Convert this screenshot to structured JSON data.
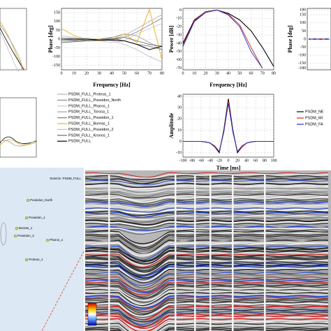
{
  "chart_data": [
    {
      "type": "line",
      "ylabel": "Phase [deg]",
      "xlabel": "Frequency [Hz]",
      "xlim": [
        0,
        80
      ],
      "xticks": [
        0,
        10,
        20,
        30,
        40,
        50,
        60,
        70,
        80
      ],
      "ylim": [
        -175,
        175
      ],
      "yticks": [
        150,
        100,
        50,
        0,
        -50,
        -100,
        -150
      ],
      "grid": true,
      "x": [
        0,
        10,
        20,
        30,
        40,
        50,
        60,
        70,
        80
      ],
      "series": [
        {
          "name": "PSDM_FULL_Proteus_1",
          "color": "#b4b4b4",
          "values": [
            10,
            5,
            0,
            -5,
            0,
            20,
            60,
            100,
            140
          ]
        },
        {
          "name": "PSDM_FULL_Poseidon_North",
          "color": "#8c8c8c",
          "values": [
            0,
            -5,
            -10,
            -10,
            -5,
            10,
            40,
            80,
            120
          ]
        },
        {
          "name": "PSDM_FULL_Pharos_1",
          "color": "#cccccc",
          "values": [
            20,
            10,
            0,
            -10,
            -20,
            -10,
            30,
            60,
            90
          ]
        },
        {
          "name": "PSDM_FULL_Torosa_1",
          "color": "#a0a0a0",
          "values": [
            0,
            0,
            -5,
            0,
            10,
            30,
            20,
            -20,
            -60
          ]
        },
        {
          "name": "PSDM_FULL_Poseidon_1",
          "color": "#7c7c7c",
          "values": [
            -10,
            -10,
            -5,
            0,
            5,
            -10,
            -30,
            -40,
            -60
          ]
        },
        {
          "name": "PSDM_FULL_Boreas_1",
          "color": "#e8b020",
          "values": [
            60,
            20,
            0,
            -10,
            0,
            30,
            -20,
            170,
            -120
          ]
        },
        {
          "name": "PSDM_FULL_Poseidon_2",
          "color": "#bebebe",
          "values": [
            0,
            5,
            5,
            0,
            -10,
            -30,
            -60,
            -100,
            -130
          ]
        },
        {
          "name": "PSDM_FULL_Kronos_1",
          "color": "#6a6a6a",
          "values": [
            -20,
            -15,
            -10,
            -5,
            0,
            10,
            -10,
            -30,
            -40
          ]
        },
        {
          "name": "PSDM_FULL",
          "color": "#000000",
          "values": [
            0,
            0,
            0,
            -5,
            -5,
            -10,
            -30,
            -60,
            -40
          ]
        }
      ]
    },
    {
      "type": "line",
      "ylabel": "Power [dB]",
      "xlabel": "Frequency [Hz]",
      "xlim": [
        0,
        80
      ],
      "xticks": [
        0,
        10,
        20,
        30,
        40,
        50,
        60,
        70,
        80
      ],
      "ylim": [
        -72,
        2
      ],
      "yticks": [
        0,
        -10,
        -20,
        -30,
        -40,
        -50,
        -60,
        -70
      ],
      "grid": true,
      "x": [
        0,
        10,
        20,
        30,
        40,
        50,
        60,
        70,
        80
      ],
      "series": [
        {
          "color": "#000000",
          "values": [
            -40,
            -12,
            -2,
            0,
            -4,
            -12,
            -25,
            -45,
            -68
          ]
        },
        {
          "color": "#d02020",
          "values": [
            -42,
            -13,
            -2,
            0,
            -5,
            -18,
            -45,
            -70,
            null
          ]
        },
        {
          "color": "#2030c0",
          "values": [
            -44,
            -14,
            -3,
            0,
            -6,
            -20,
            -50,
            -70,
            null
          ]
        }
      ]
    },
    {
      "type": "line",
      "ylabel": "Phase [deg]",
      "ylim": [
        -190,
        190
      ],
      "yticks": [
        180,
        150,
        100,
        50,
        0,
        -50,
        -100,
        -150,
        -180
      ],
      "grid": true,
      "series": [
        {
          "color": "#000000",
          "values": [
            0,
            0,
            0,
            0,
            0,
            0,
            0,
            0
          ]
        },
        {
          "color": "#d02020",
          "values": [
            2,
            0,
            -2,
            0,
            2,
            0,
            -2,
            0
          ]
        },
        {
          "color": "#2030c0",
          "values": [
            -2,
            0,
            2,
            0,
            -2,
            0,
            2,
            0
          ]
        }
      ]
    },
    {
      "type": "line",
      "ylabel": "Amplitude",
      "xlabel": "Time [ms]",
      "xlim": [
        -100,
        100
      ],
      "xticks": [
        -100,
        -80,
        -60,
        -40,
        -20,
        0,
        20,
        40,
        60,
        80,
        100
      ],
      "ylim": [
        -14,
        42
      ],
      "yticks": [
        40,
        30,
        20,
        10,
        0,
        -10
      ],
      "grid": true,
      "x": [
        -100,
        -90,
        -80,
        -70,
        -60,
        -50,
        -40,
        -30,
        -20,
        -10,
        0,
        10,
        20,
        30,
        40,
        50,
        60,
        70,
        80,
        90,
        100
      ],
      "series": [
        {
          "name": "PSDM_NE",
          "color": "#000000",
          "values": [
            0,
            0,
            0,
            0,
            0,
            -0.5,
            -1.5,
            -5,
            -10,
            10,
            38,
            10,
            -10,
            -5,
            -1.5,
            -0.5,
            0,
            0,
            0,
            0,
            0
          ]
        },
        {
          "name": "PSDM_MI",
          "color": "#d02020",
          "values": [
            0,
            0,
            0,
            0,
            0,
            -0.5,
            -1.5,
            -5,
            -9,
            9,
            36,
            9,
            -9,
            -5,
            -1.5,
            -0.5,
            0,
            0,
            0,
            0,
            0
          ]
        },
        {
          "name": "PSDM_FA",
          "color": "#2030c0",
          "values": [
            0,
            0,
            0,
            0,
            0,
            -0.5,
            -1.5,
            -4,
            -9,
            8,
            34,
            8,
            -9,
            -4,
            -1.5,
            -0.5,
            0,
            0,
            0,
            0,
            0
          ]
        }
      ]
    }
  ],
  "map": {
    "header": "Seismic: PSDM_FULL",
    "wells": [
      "Poseidon_North",
      "Poseidon_1",
      "Boreas_1",
      "Poseidon_2",
      "Pharos_1",
      "Proteus_1"
    ]
  }
}
